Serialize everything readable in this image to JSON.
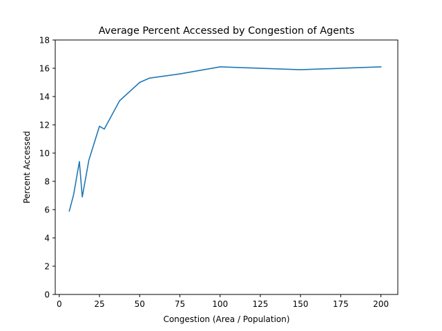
{
  "chart_data": {
    "type": "line",
    "title": "Average Percent Accessed by Congestion of Agents",
    "xlabel": "Congestion (Area / Population)",
    "ylabel": "Percent Accessed",
    "xlim": [
      -2.5,
      210.5
    ],
    "ylim": [
      0,
      18
    ],
    "xticks": [
      0,
      25,
      50,
      75,
      100,
      125,
      150,
      175,
      200
    ],
    "yticks": [
      0,
      2,
      4,
      6,
      8,
      10,
      12,
      14,
      16,
      18
    ],
    "grid": false,
    "legend": "none",
    "series": [
      {
        "color": "#1f77b4",
        "x": [
          6.25,
          9.0,
          12.5,
          14.3,
          18.4,
          25.0,
          28.0,
          37.5,
          50.0,
          56.0,
          75.0,
          100.0,
          150.0,
          200.0
        ],
        "y": [
          5.9,
          7.1,
          9.4,
          6.9,
          9.5,
          11.9,
          11.7,
          13.7,
          15.0,
          15.3,
          15.6,
          16.1,
          15.9,
          16.1
        ]
      }
    ]
  }
}
